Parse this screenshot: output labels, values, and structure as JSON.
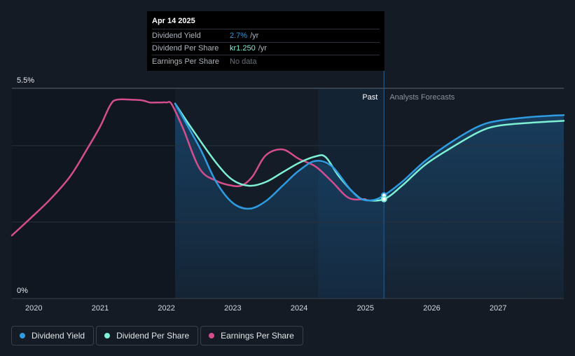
{
  "tooltip": {
    "date": "Apr 14 2025",
    "rows": [
      {
        "name": "Dividend Yield",
        "value": "2.7%",
        "unit": "/yr",
        "color": "#2f9be0"
      },
      {
        "name": "Dividend Per Share",
        "value": "kr1.250",
        "unit": "/yr",
        "color": "#7ef0d4"
      },
      {
        "name": "Earnings Per Share",
        "value": "No data",
        "unit": "",
        "color": "#6b717a"
      }
    ]
  },
  "legend": [
    {
      "label": "Dividend Yield",
      "color": "#2f9be0"
    },
    {
      "label": "Dividend Per Share",
      "color": "#7ef0d4"
    },
    {
      "label": "Earnings Per Share",
      "color": "#d44d8c"
    }
  ],
  "chart_data": {
    "type": "line",
    "y_axis_labels": [
      "5.5%",
      "0%"
    ],
    "ylim": [
      0,
      5.5
    ],
    "xlim": [
      2019.67,
      2027.99
    ],
    "x_ticks": [
      2020,
      2021,
      2022,
      2023,
      2024,
      2025,
      2026,
      2027
    ],
    "x_tick_labels": [
      "2020",
      "2021",
      "2022",
      "2023",
      "2024",
      "2025",
      "2026",
      "2027"
    ],
    "past_label": "Past",
    "forecast_label": "Analysts Forecasts",
    "past_end": 2025.28,
    "shaded_from": 2022.13,
    "highlight_from": 2024.29,
    "grid": true,
    "legend_position": "bottom-left",
    "series": [
      {
        "name": "Dividend Yield",
        "key": "yield",
        "color": "#2f9be0",
        "points": [
          [
            2022.13,
            5.1
          ],
          [
            2022.5,
            3.95
          ],
          [
            2022.75,
            3.05
          ],
          [
            2023.0,
            2.5
          ],
          [
            2023.25,
            2.35
          ],
          [
            2023.5,
            2.55
          ],
          [
            2023.75,
            2.95
          ],
          [
            2024.0,
            3.35
          ],
          [
            2024.25,
            3.6
          ],
          [
            2024.5,
            3.45
          ],
          [
            2024.75,
            2.9
          ],
          [
            2024.92,
            2.62
          ],
          [
            2025.1,
            2.57
          ],
          [
            2025.28,
            2.7
          ],
          [
            2025.55,
            3.05
          ],
          [
            2025.9,
            3.6
          ],
          [
            2026.3,
            4.1
          ],
          [
            2026.7,
            4.5
          ],
          [
            2027.0,
            4.65
          ],
          [
            2027.5,
            4.75
          ],
          [
            2027.99,
            4.8
          ]
        ]
      },
      {
        "name": "Dividend Per Share",
        "key": "dps",
        "color": "#7ef0d4",
        "points": [
          [
            2022.13,
            5.1
          ],
          [
            2022.4,
            4.4
          ],
          [
            2022.75,
            3.55
          ],
          [
            2023.0,
            3.1
          ],
          [
            2023.25,
            2.95
          ],
          [
            2023.5,
            3.05
          ],
          [
            2023.75,
            3.3
          ],
          [
            2024.0,
            3.55
          ],
          [
            2024.25,
            3.72
          ],
          [
            2024.4,
            3.7
          ],
          [
            2024.6,
            3.2
          ],
          [
            2024.85,
            2.72
          ],
          [
            2025.0,
            2.58
          ],
          [
            2025.28,
            2.6
          ],
          [
            2025.55,
            2.95
          ],
          [
            2025.9,
            3.5
          ],
          [
            2026.3,
            3.95
          ],
          [
            2026.7,
            4.35
          ],
          [
            2027.0,
            4.52
          ],
          [
            2027.5,
            4.6
          ],
          [
            2027.99,
            4.65
          ]
        ]
      },
      {
        "name": "Earnings Per Share",
        "key": "eps",
        "color": "#d44d8c",
        "points": [
          [
            2019.67,
            1.65
          ],
          [
            2019.95,
            2.1
          ],
          [
            2020.25,
            2.6
          ],
          [
            2020.55,
            3.2
          ],
          [
            2020.8,
            3.9
          ],
          [
            2021.0,
            4.5
          ],
          [
            2021.15,
            5.05
          ],
          [
            2021.25,
            5.2
          ],
          [
            2021.5,
            5.2
          ],
          [
            2021.65,
            5.18
          ],
          [
            2021.75,
            5.13
          ],
          [
            2021.9,
            5.13
          ],
          [
            2022.0,
            5.13
          ],
          [
            2022.08,
            5.08
          ],
          [
            2022.25,
            4.45
          ],
          [
            2022.5,
            3.4
          ],
          [
            2022.75,
            3.08
          ],
          [
            2023.0,
            2.95
          ],
          [
            2023.15,
            2.97
          ],
          [
            2023.3,
            3.2
          ],
          [
            2023.5,
            3.75
          ],
          [
            2023.75,
            3.9
          ],
          [
            2024.0,
            3.65
          ],
          [
            2024.25,
            3.45
          ],
          [
            2024.5,
            3.05
          ],
          [
            2024.75,
            2.63
          ],
          [
            2025.0,
            2.6
          ]
        ]
      }
    ]
  }
}
